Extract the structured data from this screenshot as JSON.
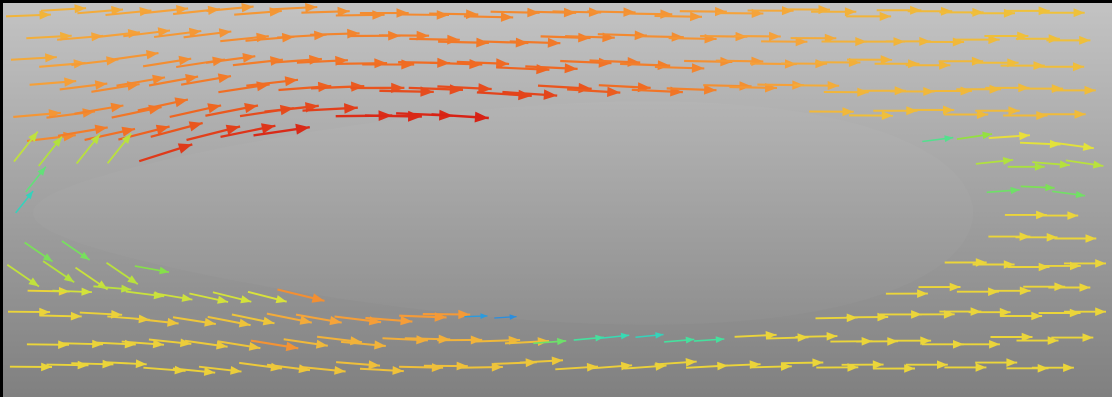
{
  "visualization": {
    "kind": "vector-field",
    "subject": "flow-around-elongated-body",
    "background_top": "#c3c3c3",
    "background_bottom": "#808080",
    "body_fill_top": "#b4b4b4",
    "body_fill_bottom": "#8f8f8f",
    "frame_color": "#000000",
    "colormap": [
      "#2e3fd6",
      "#2aa6e0",
      "#38e0b0",
      "#8ee040",
      "#e8e23a",
      "#f5a23a",
      "#f06a22",
      "#d41a14"
    ],
    "free_stream_level": 0.6,
    "arrow_count_approx": 500
  }
}
